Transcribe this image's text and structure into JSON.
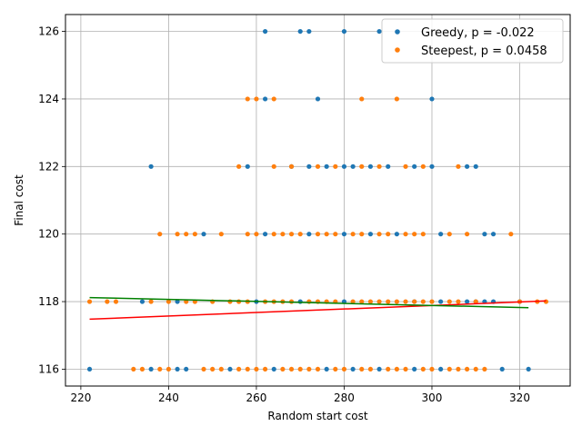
{
  "chart_data": {
    "type": "scatter",
    "xlabel": "Random start cost",
    "ylabel": "Final cost",
    "xlim": [
      216.5,
      331.5
    ],
    "ylim": [
      115.5,
      126.5
    ],
    "x_ticks": [
      220,
      240,
      260,
      280,
      300,
      320
    ],
    "y_ticks": [
      116,
      118,
      120,
      122,
      124,
      126
    ],
    "grid": true,
    "legend_position": "top-right",
    "series": [
      {
        "name": "Greedy, p = -0.022",
        "color": "#1f77b4",
        "points": [
          [
            262,
            126
          ],
          [
            270,
            126
          ],
          [
            272,
            126
          ],
          [
            280,
            126
          ],
          [
            288,
            126
          ],
          [
            262,
            124
          ],
          [
            274,
            124
          ],
          [
            300,
            124
          ],
          [
            236,
            122
          ],
          [
            258,
            122
          ],
          [
            268,
            122
          ],
          [
            272,
            122
          ],
          [
            276,
            122
          ],
          [
            280,
            122
          ],
          [
            282,
            122
          ],
          [
            286,
            122
          ],
          [
            290,
            122
          ],
          [
            296,
            122
          ],
          [
            300,
            122
          ],
          [
            308,
            122
          ],
          [
            310,
            122
          ],
          [
            248,
            120
          ],
          [
            262,
            120
          ],
          [
            272,
            120
          ],
          [
            280,
            120
          ],
          [
            286,
            120
          ],
          [
            292,
            120
          ],
          [
            302,
            120
          ],
          [
            312,
            120
          ],
          [
            314,
            120
          ],
          [
            234,
            118
          ],
          [
            242,
            118
          ],
          [
            260,
            118
          ],
          [
            270,
            118
          ],
          [
            280,
            118
          ],
          [
            296,
            118
          ],
          [
            302,
            118
          ],
          [
            308,
            118
          ],
          [
            310,
            118
          ],
          [
            312,
            118
          ],
          [
            314,
            118
          ],
          [
            320,
            118
          ],
          [
            222,
            116
          ],
          [
            236,
            116
          ],
          [
            242,
            116
          ],
          [
            244,
            116
          ],
          [
            254,
            116
          ],
          [
            264,
            116
          ],
          [
            276,
            116
          ],
          [
            282,
            116
          ],
          [
            288,
            116
          ],
          [
            296,
            116
          ],
          [
            302,
            116
          ],
          [
            316,
            116
          ],
          [
            322,
            116
          ]
        ]
      },
      {
        "name": "Steepest, p = 0.0458",
        "color": "#ff7f0e",
        "points": [
          [
            258,
            124
          ],
          [
            260,
            124
          ],
          [
            264,
            124
          ],
          [
            284,
            124
          ],
          [
            292,
            124
          ],
          [
            256,
            122
          ],
          [
            264,
            122
          ],
          [
            268,
            122
          ],
          [
            274,
            122
          ],
          [
            278,
            122
          ],
          [
            284,
            122
          ],
          [
            288,
            122
          ],
          [
            294,
            122
          ],
          [
            298,
            122
          ],
          [
            306,
            122
          ],
          [
            238,
            120
          ],
          [
            242,
            120
          ],
          [
            244,
            120
          ],
          [
            246,
            120
          ],
          [
            252,
            120
          ],
          [
            258,
            120
          ],
          [
            260,
            120
          ],
          [
            264,
            120
          ],
          [
            266,
            120
          ],
          [
            268,
            120
          ],
          [
            270,
            120
          ],
          [
            274,
            120
          ],
          [
            276,
            120
          ],
          [
            278,
            120
          ],
          [
            282,
            120
          ],
          [
            284,
            120
          ],
          [
            288,
            120
          ],
          [
            290,
            120
          ],
          [
            294,
            120
          ],
          [
            296,
            120
          ],
          [
            298,
            120
          ],
          [
            304,
            120
          ],
          [
            308,
            120
          ],
          [
            318,
            120
          ],
          [
            222,
            118
          ],
          [
            226,
            118
          ],
          [
            228,
            118
          ],
          [
            236,
            118
          ],
          [
            240,
            118
          ],
          [
            244,
            118
          ],
          [
            246,
            118
          ],
          [
            250,
            118
          ],
          [
            254,
            118
          ],
          [
            256,
            118
          ],
          [
            258,
            118
          ],
          [
            262,
            118
          ],
          [
            264,
            118
          ],
          [
            266,
            118
          ],
          [
            268,
            118
          ],
          [
            272,
            118
          ],
          [
            274,
            118
          ],
          [
            276,
            118
          ],
          [
            278,
            118
          ],
          [
            282,
            118
          ],
          [
            284,
            118
          ],
          [
            286,
            118
          ],
          [
            288,
            118
          ],
          [
            290,
            118
          ],
          [
            292,
            118
          ],
          [
            294,
            118
          ],
          [
            296,
            118
          ],
          [
            298,
            118
          ],
          [
            300,
            118
          ],
          [
            304,
            118
          ],
          [
            306,
            118
          ],
          [
            310,
            118
          ],
          [
            320,
            118
          ],
          [
            324,
            118
          ],
          [
            326,
            118
          ],
          [
            232,
            116
          ],
          [
            234,
            116
          ],
          [
            238,
            116
          ],
          [
            240,
            116
          ],
          [
            248,
            116
          ],
          [
            250,
            116
          ],
          [
            252,
            116
          ],
          [
            256,
            116
          ],
          [
            258,
            116
          ],
          [
            260,
            116
          ],
          [
            262,
            116
          ],
          [
            266,
            116
          ],
          [
            268,
            116
          ],
          [
            270,
            116
          ],
          [
            272,
            116
          ],
          [
            274,
            116
          ],
          [
            278,
            116
          ],
          [
            280,
            116
          ],
          [
            284,
            116
          ],
          [
            286,
            116
          ],
          [
            290,
            116
          ],
          [
            292,
            116
          ],
          [
            294,
            116
          ],
          [
            298,
            116
          ],
          [
            300,
            116
          ],
          [
            304,
            116
          ],
          [
            306,
            116
          ],
          [
            308,
            116
          ],
          [
            310,
            116
          ],
          [
            312,
            116
          ]
        ]
      }
    ],
    "fit_lines": [
      {
        "color": "#ff0000",
        "start": [
          222,
          117.48
        ],
        "end": [
          326,
          118.02
        ]
      },
      {
        "color": "#008000",
        "start": [
          222,
          118.12
        ],
        "end": [
          322,
          117.82
        ]
      }
    ]
  }
}
